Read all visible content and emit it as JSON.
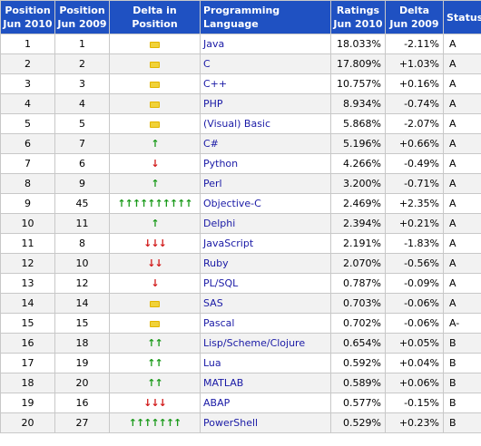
{
  "headers": {
    "pos2010_l1": "Position",
    "pos2010_l2": "Jun 2010",
    "pos2009_l1": "Position",
    "pos2009_l2": "Jun 2009",
    "delta_pos": "Delta in Position",
    "language": "Programming Language",
    "ratings_l1": "Ratings",
    "ratings_l2": "Jun 2010",
    "delta_l1": "Delta",
    "delta_l2": "Jun 2009",
    "status": "Status"
  },
  "rows": [
    {
      "pos2010": "1",
      "pos2009": "1",
      "trend": "equal",
      "count": 0,
      "language": "Java",
      "rating": "18.033%",
      "delta": "-2.11%",
      "status": "A"
    },
    {
      "pos2010": "2",
      "pos2009": "2",
      "trend": "equal",
      "count": 0,
      "language": "C",
      "rating": "17.809%",
      "delta": "+1.03%",
      "status": "A"
    },
    {
      "pos2010": "3",
      "pos2009": "3",
      "trend": "equal",
      "count": 0,
      "language": "C++",
      "rating": "10.757%",
      "delta": "+0.16%",
      "status": "A"
    },
    {
      "pos2010": "4",
      "pos2009": "4",
      "trend": "equal",
      "count": 0,
      "language": "PHP",
      "rating": "8.934%",
      "delta": "-0.74%",
      "status": "A"
    },
    {
      "pos2010": "5",
      "pos2009": "5",
      "trend": "equal",
      "count": 0,
      "language": "(Visual) Basic",
      "rating": "5.868%",
      "delta": "-2.07%",
      "status": "A"
    },
    {
      "pos2010": "6",
      "pos2009": "7",
      "trend": "up",
      "count": 1,
      "language": "C#",
      "rating": "5.196%",
      "delta": "+0.66%",
      "status": "A"
    },
    {
      "pos2010": "7",
      "pos2009": "6",
      "trend": "down",
      "count": 1,
      "language": "Python",
      "rating": "4.266%",
      "delta": "-0.49%",
      "status": "A"
    },
    {
      "pos2010": "8",
      "pos2009": "9",
      "trend": "up",
      "count": 1,
      "language": "Perl",
      "rating": "3.200%",
      "delta": "-0.71%",
      "status": "A"
    },
    {
      "pos2010": "9",
      "pos2009": "45",
      "trend": "up",
      "count": 10,
      "language": "Objective-C",
      "rating": "2.469%",
      "delta": "+2.35%",
      "status": "A"
    },
    {
      "pos2010": "10",
      "pos2009": "11",
      "trend": "up",
      "count": 1,
      "language": "Delphi",
      "rating": "2.394%",
      "delta": "+0.21%",
      "status": "A"
    },
    {
      "pos2010": "11",
      "pos2009": "8",
      "trend": "down",
      "count": 3,
      "language": "JavaScript",
      "rating": "2.191%",
      "delta": "-1.83%",
      "status": "A"
    },
    {
      "pos2010": "12",
      "pos2009": "10",
      "trend": "down",
      "count": 2,
      "language": "Ruby",
      "rating": "2.070%",
      "delta": "-0.56%",
      "status": "A"
    },
    {
      "pos2010": "13",
      "pos2009": "12",
      "trend": "down",
      "count": 1,
      "language": "PL/SQL",
      "rating": "0.787%",
      "delta": "-0.09%",
      "status": "A"
    },
    {
      "pos2010": "14",
      "pos2009": "14",
      "trend": "equal",
      "count": 0,
      "language": "SAS",
      "rating": "0.703%",
      "delta": "-0.06%",
      "status": "A"
    },
    {
      "pos2010": "15",
      "pos2009": "15",
      "trend": "equal",
      "count": 0,
      "language": "Pascal",
      "rating": "0.702%",
      "delta": "-0.06%",
      "status": "A-"
    },
    {
      "pos2010": "16",
      "pos2009": "18",
      "trend": "up",
      "count": 2,
      "language": "Lisp/Scheme/Clojure",
      "rating": "0.654%",
      "delta": "+0.05%",
      "status": "B"
    },
    {
      "pos2010": "17",
      "pos2009": "19",
      "trend": "up",
      "count": 2,
      "language": "Lua",
      "rating": "0.592%",
      "delta": "+0.04%",
      "status": "B"
    },
    {
      "pos2010": "18",
      "pos2009": "20",
      "trend": "up",
      "count": 2,
      "language": "MATLAB",
      "rating": "0.589%",
      "delta": "+0.06%",
      "status": "B"
    },
    {
      "pos2010": "19",
      "pos2009": "16",
      "trend": "down",
      "count": 3,
      "language": "ABAP",
      "rating": "0.577%",
      "delta": "-0.15%",
      "status": "B"
    },
    {
      "pos2010": "20",
      "pos2009": "27",
      "trend": "up",
      "count": 7,
      "language": "PowerShell",
      "rating": "0.529%",
      "delta": "+0.23%",
      "status": "B"
    }
  ],
  "colors": {
    "header_bg": "#1f51c2",
    "up_arrow": "#1a9a1a",
    "down_arrow": "#d11a1a",
    "equal_marker": "#f0d23a",
    "link": "#1a1aa6"
  }
}
